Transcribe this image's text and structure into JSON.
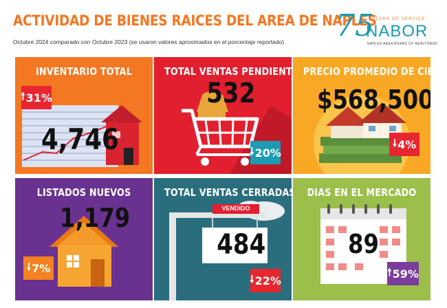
{
  "header": {
    "title": "ACTIVIDAD DE BIENES RAICES DEL AREA DE NAPLES",
    "subtitle": "Octubre 2024 comparado con Octubre 2023 (se usaron valores aproximados en el porcentaje reportado)"
  },
  "logo": {
    "number": "75",
    "tagline": "YEARS OF SERVICE",
    "name": "NABOR",
    "subname": "NAPLES AREA BOARD OF REALTORS®"
  },
  "colors": {
    "title_orange": "#f47721",
    "tile_orange": "#f47721",
    "tile_red": "#e11f2f",
    "tile_yellow": "#f9a825",
    "tile_purple": "#6a3290",
    "tile_teal": "#2a6e7e",
    "tile_green": "#9bbf4a",
    "badge_red": "#e8262f",
    "badge_teal": "#1d9bb5",
    "badge_purple": "#7b3d9b"
  },
  "tiles": [
    {
      "heading": "INVENTARIO TOTAL",
      "value": "4,746",
      "change": "31%",
      "direction": "up",
      "icon": "house-with-chart-icon"
    },
    {
      "heading": "TOTAL VENTAS PENDIENTES",
      "value": "532",
      "change": "20%",
      "direction": "down",
      "icon": "shopping-cart-icon"
    },
    {
      "heading": "PRECIO PROMEDIO DE CIERRE",
      "value": "$568,500",
      "change": "4%",
      "direction": "down",
      "icon": "house-on-money-icon"
    },
    {
      "heading": "LISTADOS NUEVOS",
      "value": "1,179",
      "change": "7%",
      "direction": "down",
      "icon": "house-icon"
    },
    {
      "heading": "TOTAL VENTAS CERRADAS",
      "value": "484",
      "sign": "VENDIDO",
      "change": "22%",
      "direction": "down",
      "icon": "sold-sign-icon"
    },
    {
      "heading": "DIAS EN EL MERCADO",
      "value": "89",
      "change": "59%",
      "direction": "up",
      "icon": "calendar-icon"
    }
  ],
  "arrows": {
    "up": "🠕",
    "down": "🠗"
  }
}
